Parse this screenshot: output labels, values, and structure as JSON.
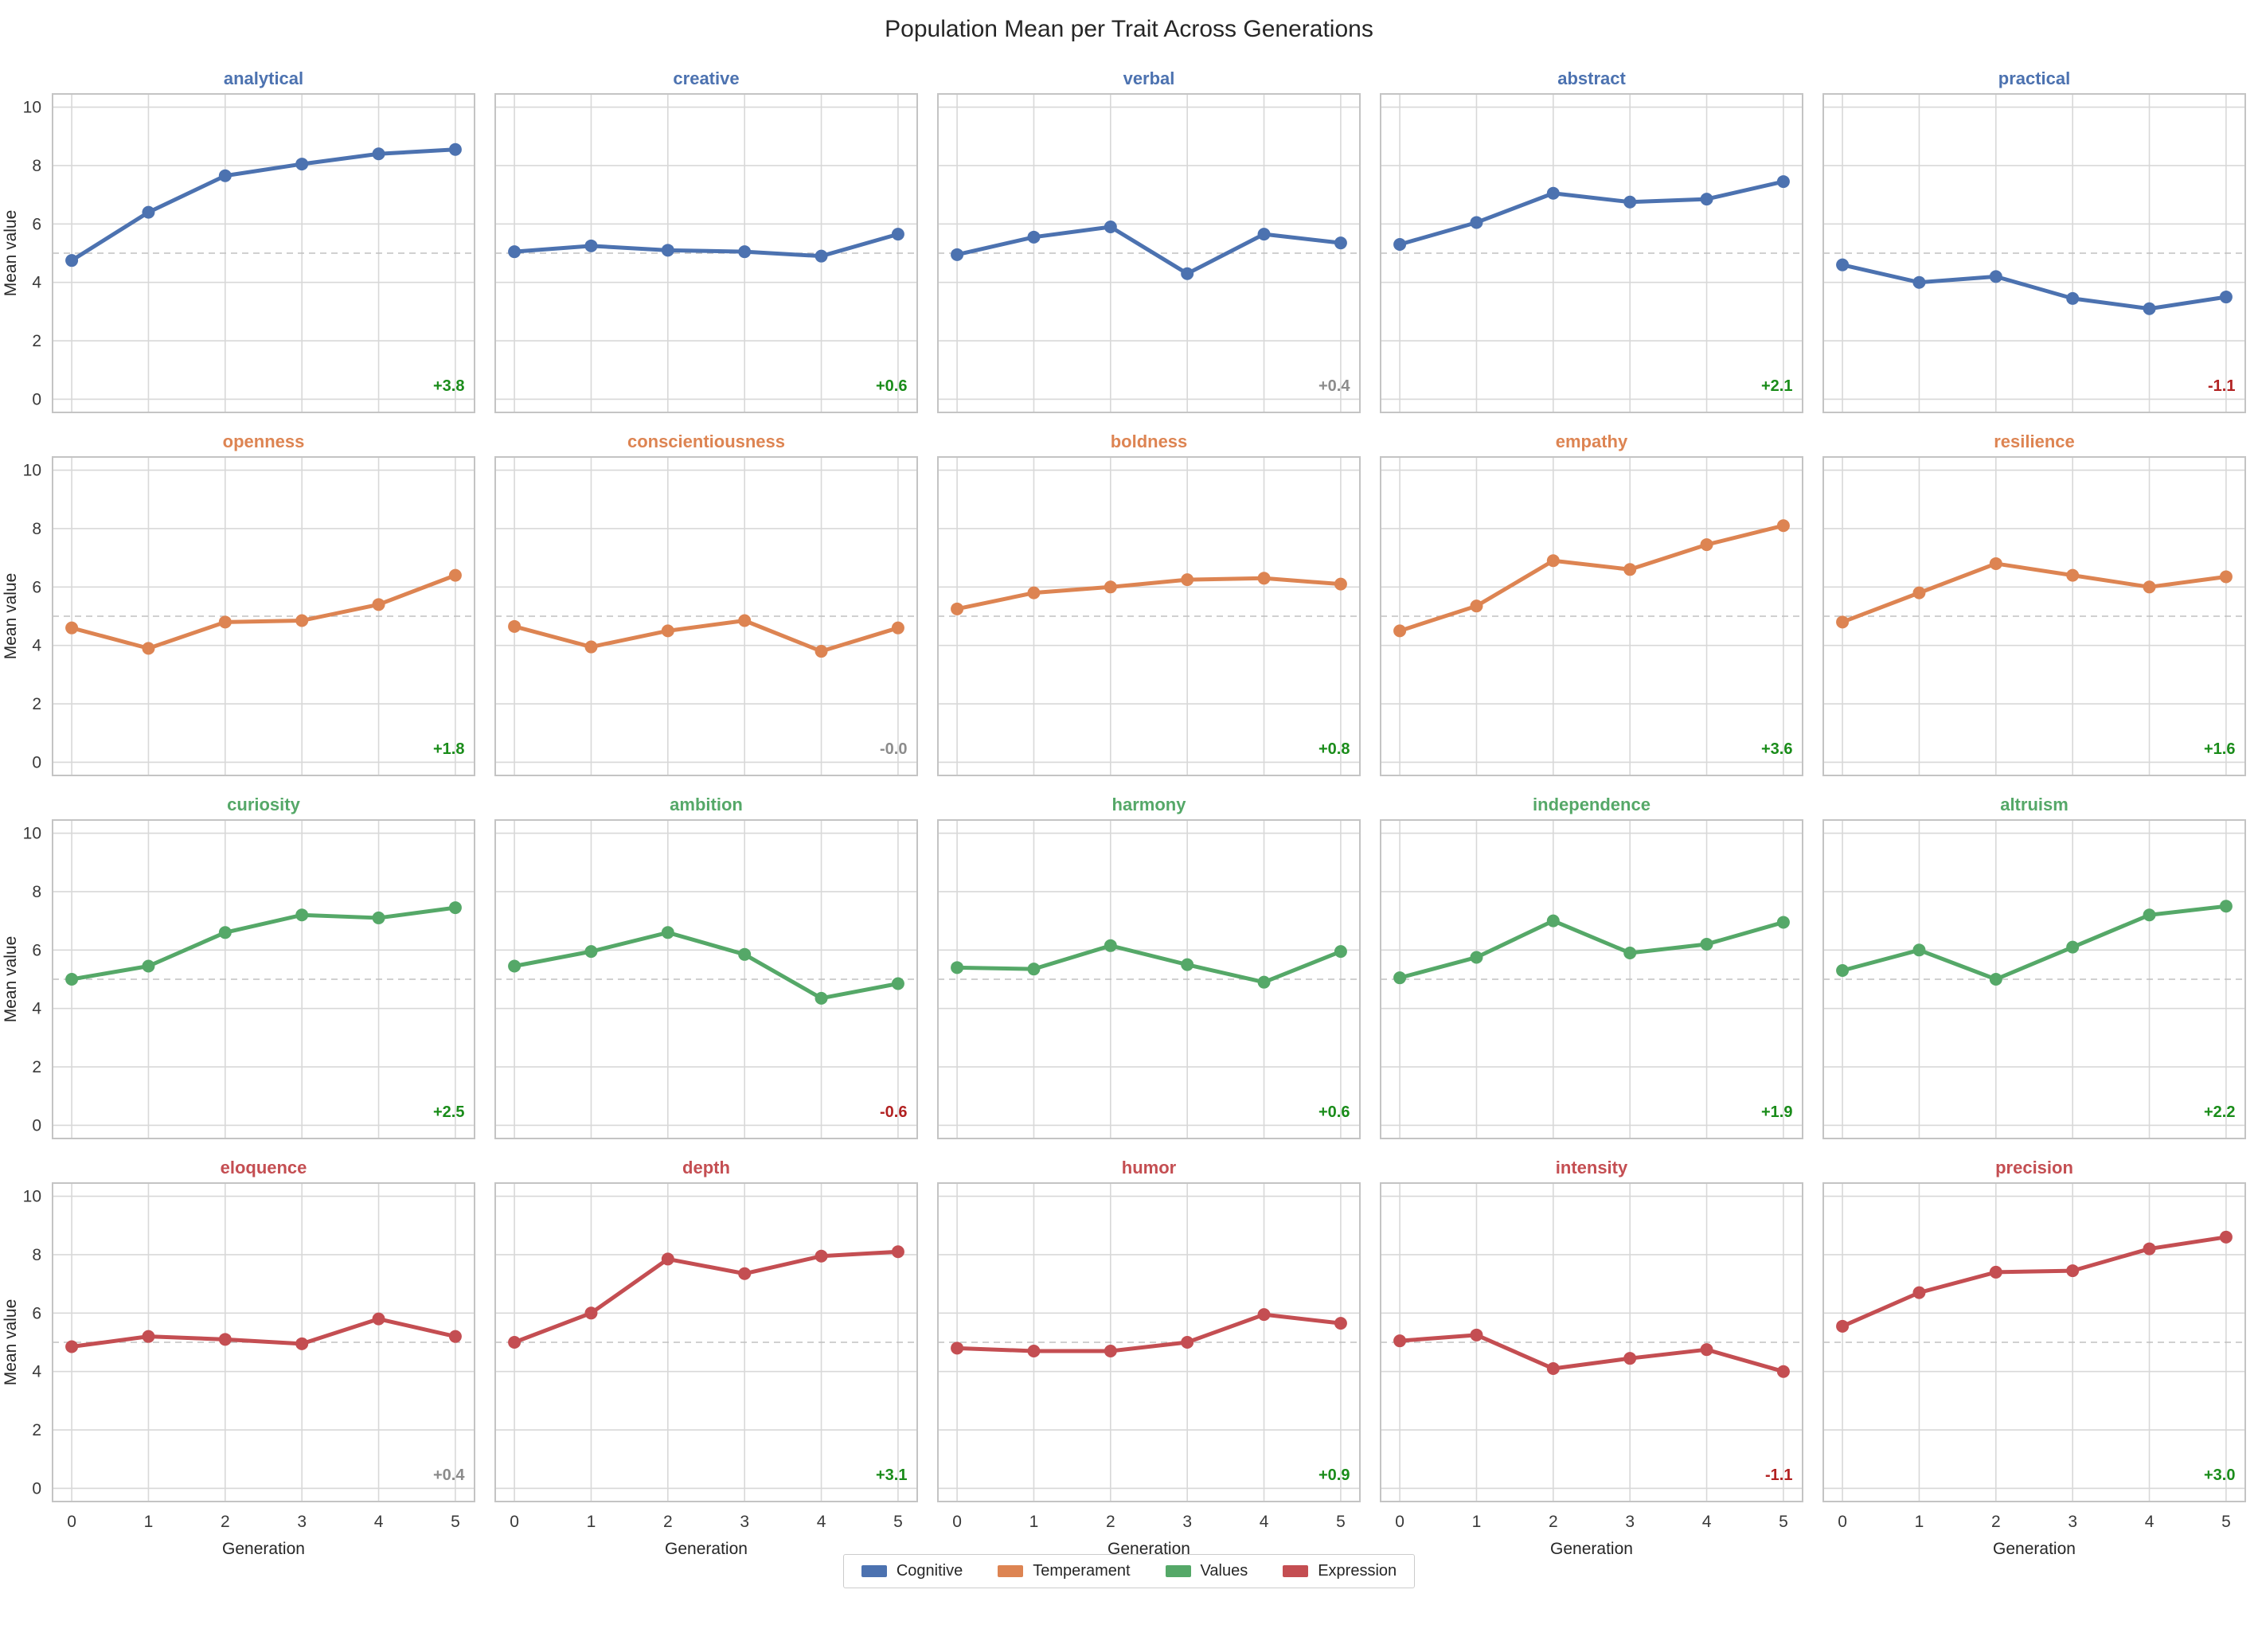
{
  "title": "Population Mean per Trait Across Generations",
  "axes": {
    "xlabel": "Generation",
    "ylabel": "Mean value",
    "x_ticks": [
      0,
      1,
      2,
      3,
      4,
      5
    ],
    "y_ticks": [
      0,
      2,
      4,
      6,
      8,
      10
    ],
    "xlim": [
      -0.25,
      5.25
    ],
    "ylim": [
      -0.45,
      10.45
    ],
    "baseline": 5,
    "grid": "on"
  },
  "style": {
    "grid_color": "#d8d8d8",
    "spine_color": "#c4c4c4",
    "baseline_color": "#c0c0c0",
    "background": "#ffffff"
  },
  "delta_colors": {
    "positive": "#1a8c1a",
    "negative": "#b22222",
    "neutral": "#8c8c8c"
  },
  "legend": [
    {
      "label": "Cognitive",
      "color": "#4C72B0"
    },
    {
      "label": "Temperament",
      "color": "#DD8452"
    },
    {
      "label": "Values",
      "color": "#55A868"
    },
    {
      "label": "Expression",
      "color": "#C44E52"
    }
  ],
  "chart_data": [
    {
      "type": "line",
      "trait": "analytical",
      "group": "Cognitive",
      "color": "#4C72B0",
      "x": [
        0,
        1,
        2,
        3,
        4,
        5
      ],
      "values": [
        4.75,
        6.4,
        7.65,
        8.05,
        8.4,
        8.55
      ],
      "delta": "+3.8",
      "delta_tone": "positive"
    },
    {
      "type": "line",
      "trait": "creative",
      "group": "Cognitive",
      "color": "#4C72B0",
      "x": [
        0,
        1,
        2,
        3,
        4,
        5
      ],
      "values": [
        5.05,
        5.25,
        5.1,
        5.05,
        4.9,
        5.65
      ],
      "delta": "+0.6",
      "delta_tone": "positive"
    },
    {
      "type": "line",
      "trait": "verbal",
      "group": "Cognitive",
      "color": "#4C72B0",
      "x": [
        0,
        1,
        2,
        3,
        4,
        5
      ],
      "values": [
        4.95,
        5.55,
        5.9,
        4.3,
        5.65,
        5.35
      ],
      "delta": "+0.4",
      "delta_tone": "neutral"
    },
    {
      "type": "line",
      "trait": "abstract",
      "group": "Cognitive",
      "color": "#4C72B0",
      "x": [
        0,
        1,
        2,
        3,
        4,
        5
      ],
      "values": [
        5.3,
        6.05,
        7.05,
        6.75,
        6.85,
        7.45
      ],
      "delta": "+2.1",
      "delta_tone": "positive"
    },
    {
      "type": "line",
      "trait": "practical",
      "group": "Cognitive",
      "color": "#4C72B0",
      "x": [
        0,
        1,
        2,
        3,
        4,
        5
      ],
      "values": [
        4.6,
        4.0,
        4.2,
        3.45,
        3.1,
        3.5
      ],
      "delta": "-1.1",
      "delta_tone": "negative"
    },
    {
      "type": "line",
      "trait": "openness",
      "group": "Temperament",
      "color": "#DD8452",
      "x": [
        0,
        1,
        2,
        3,
        4,
        5
      ],
      "values": [
        4.6,
        3.9,
        4.8,
        4.85,
        5.4,
        6.4
      ],
      "delta": "+1.8",
      "delta_tone": "positive"
    },
    {
      "type": "line",
      "trait": "conscientiousness",
      "group": "Temperament",
      "color": "#DD8452",
      "x": [
        0,
        1,
        2,
        3,
        4,
        5
      ],
      "values": [
        4.65,
        3.95,
        4.5,
        4.85,
        3.8,
        4.6
      ],
      "delta": "-0.0",
      "delta_tone": "neutral"
    },
    {
      "type": "line",
      "trait": "boldness",
      "group": "Temperament",
      "color": "#DD8452",
      "x": [
        0,
        1,
        2,
        3,
        4,
        5
      ],
      "values": [
        5.25,
        5.8,
        6.0,
        6.25,
        6.3,
        6.1
      ],
      "delta": "+0.8",
      "delta_tone": "positive"
    },
    {
      "type": "line",
      "trait": "empathy",
      "group": "Temperament",
      "color": "#DD8452",
      "x": [
        0,
        1,
        2,
        3,
        4,
        5
      ],
      "values": [
        4.5,
        5.35,
        6.9,
        6.6,
        7.45,
        8.1
      ],
      "delta": "+3.6",
      "delta_tone": "positive"
    },
    {
      "type": "line",
      "trait": "resilience",
      "group": "Temperament",
      "color": "#DD8452",
      "x": [
        0,
        1,
        2,
        3,
        4,
        5
      ],
      "values": [
        4.8,
        5.8,
        6.8,
        6.4,
        6.0,
        6.35
      ],
      "delta": "+1.6",
      "delta_tone": "positive"
    },
    {
      "type": "line",
      "trait": "curiosity",
      "group": "Values",
      "color": "#55A868",
      "x": [
        0,
        1,
        2,
        3,
        4,
        5
      ],
      "values": [
        5.0,
        5.45,
        6.6,
        7.2,
        7.1,
        7.45
      ],
      "delta": "+2.5",
      "delta_tone": "positive"
    },
    {
      "type": "line",
      "trait": "ambition",
      "group": "Values",
      "color": "#55A868",
      "x": [
        0,
        1,
        2,
        3,
        4,
        5
      ],
      "values": [
        5.45,
        5.95,
        6.6,
        5.85,
        4.35,
        4.85
      ],
      "delta": "-0.6",
      "delta_tone": "negative"
    },
    {
      "type": "line",
      "trait": "harmony",
      "group": "Values",
      "color": "#55A868",
      "x": [
        0,
        1,
        2,
        3,
        4,
        5
      ],
      "values": [
        5.4,
        5.35,
        6.15,
        5.5,
        4.9,
        5.95
      ],
      "delta": "+0.6",
      "delta_tone": "positive"
    },
    {
      "type": "line",
      "trait": "independence",
      "group": "Values",
      "color": "#55A868",
      "x": [
        0,
        1,
        2,
        3,
        4,
        5
      ],
      "values": [
        5.05,
        5.75,
        7.0,
        5.9,
        6.2,
        6.95
      ],
      "delta": "+1.9",
      "delta_tone": "positive"
    },
    {
      "type": "line",
      "trait": "altruism",
      "group": "Values",
      "color": "#55A868",
      "x": [
        0,
        1,
        2,
        3,
        4,
        5
      ],
      "values": [
        5.3,
        6.0,
        5.0,
        6.1,
        7.2,
        7.5
      ],
      "delta": "+2.2",
      "delta_tone": "positive"
    },
    {
      "type": "line",
      "trait": "eloquence",
      "group": "Expression",
      "color": "#C44E52",
      "x": [
        0,
        1,
        2,
        3,
        4,
        5
      ],
      "values": [
        4.85,
        5.2,
        5.1,
        4.95,
        5.8,
        5.2
      ],
      "delta": "+0.4",
      "delta_tone": "neutral"
    },
    {
      "type": "line",
      "trait": "depth",
      "group": "Expression",
      "color": "#C44E52",
      "x": [
        0,
        1,
        2,
        3,
        4,
        5
      ],
      "values": [
        5.0,
        6.0,
        7.85,
        7.35,
        7.95,
        8.1
      ],
      "delta": "+3.1",
      "delta_tone": "positive"
    },
    {
      "type": "line",
      "trait": "humor",
      "group": "Expression",
      "color": "#C44E52",
      "x": [
        0,
        1,
        2,
        3,
        4,
        5
      ],
      "values": [
        4.8,
        4.7,
        4.7,
        5.0,
        5.95,
        5.65
      ],
      "delta": "+0.9",
      "delta_tone": "positive"
    },
    {
      "type": "line",
      "trait": "intensity",
      "group": "Expression",
      "color": "#C44E52",
      "x": [
        0,
        1,
        2,
        3,
        4,
        5
      ],
      "values": [
        5.05,
        5.25,
        4.1,
        4.45,
        4.75,
        4.0
      ],
      "delta": "-1.1",
      "delta_tone": "negative"
    },
    {
      "type": "line",
      "trait": "precision",
      "group": "Expression",
      "color": "#C44E52",
      "x": [
        0,
        1,
        2,
        3,
        4,
        5
      ],
      "values": [
        5.55,
        6.7,
        7.4,
        7.45,
        8.2,
        8.6
      ],
      "delta": "+3.0",
      "delta_tone": "positive"
    }
  ]
}
